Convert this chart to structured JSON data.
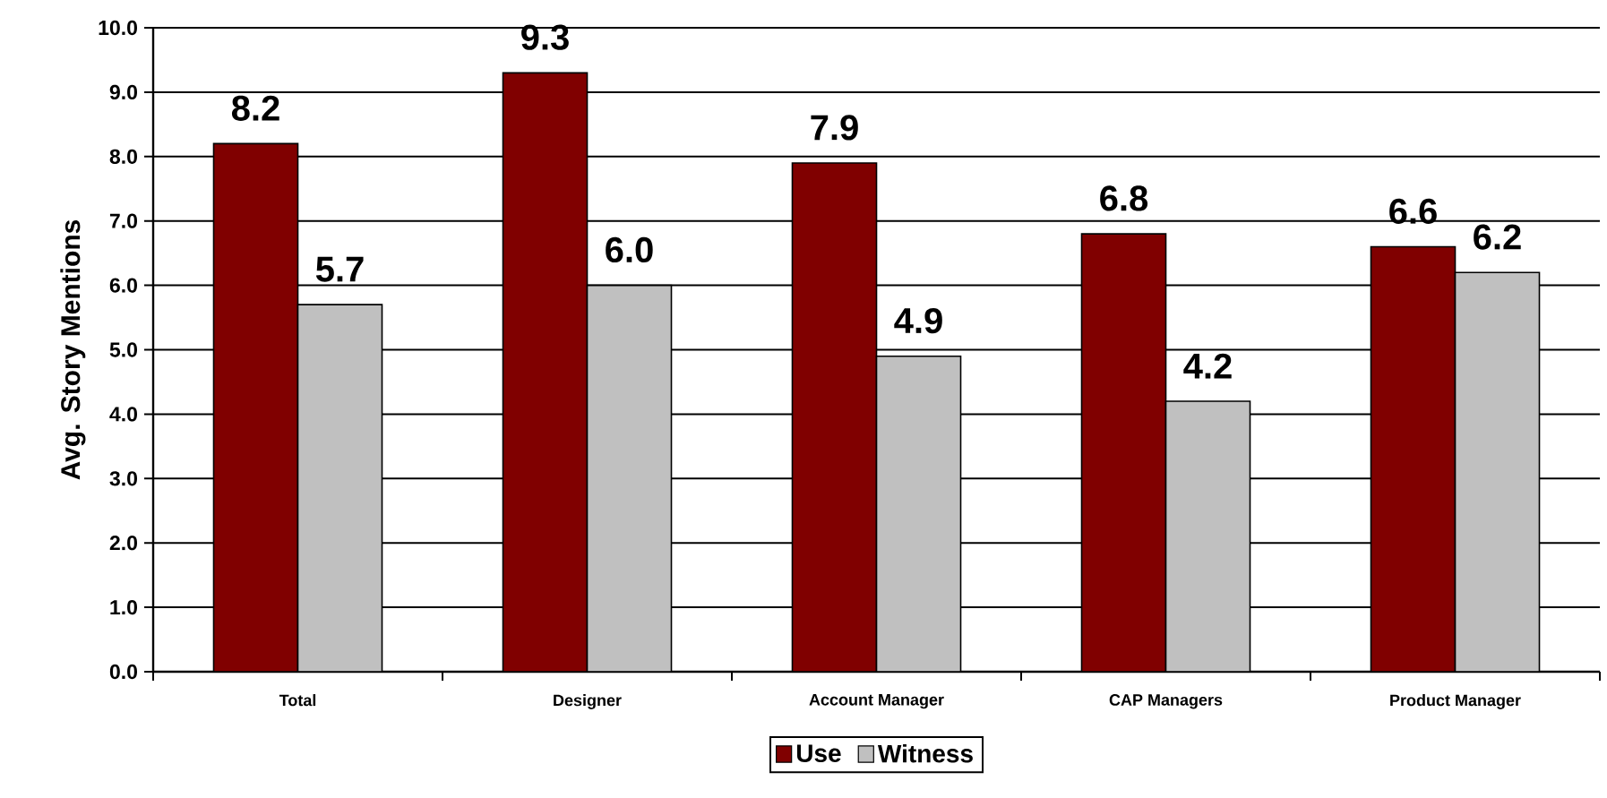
{
  "chart_data": {
    "type": "bar",
    "ylabel": "Avg. Story Mentions",
    "categories": [
      "Total",
      "Designer",
      "Account Manager",
      "CAP Managers",
      "Product Manager"
    ],
    "series": [
      {
        "name": "Use",
        "color": "#800000",
        "values": [
          8.2,
          9.3,
          7.9,
          6.8,
          6.6
        ],
        "value_labels": [
          "8.2",
          "9.3",
          "7.9",
          "6.8",
          "6.6"
        ]
      },
      {
        "name": "Witness",
        "color": "#c0c0c0",
        "values": [
          5.7,
          6.0,
          4.9,
          4.2,
          6.2
        ],
        "value_labels": [
          "5.7",
          "6.0",
          "4.9",
          "4.2",
          "6.2"
        ]
      }
    ],
    "ylim": [
      0,
      10
    ],
    "yticks": [
      {
        "value": 0,
        "label": "0.0"
      },
      {
        "value": 1,
        "label": "1.0"
      },
      {
        "value": 2,
        "label": "2.0"
      },
      {
        "value": 3,
        "label": "3.0"
      },
      {
        "value": 4,
        "label": "4.0"
      },
      {
        "value": 5,
        "label": "5.0"
      },
      {
        "value": 6,
        "label": "6.0"
      },
      {
        "value": 7,
        "label": "7.0"
      },
      {
        "value": 8,
        "label": "8.0"
      },
      {
        "value": 9,
        "label": "9.0"
      },
      {
        "value": 10,
        "label": "10.0"
      }
    ],
    "grid": "y",
    "legend": "bottom"
  }
}
